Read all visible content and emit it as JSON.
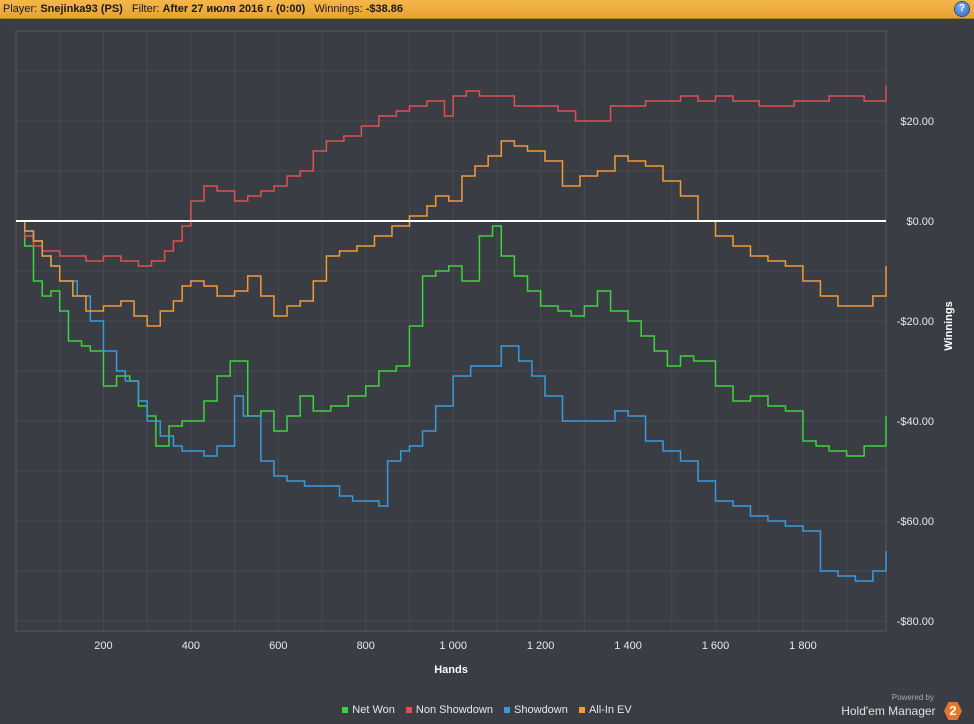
{
  "header": {
    "player_label": "Player:",
    "player_value": "Snejinka93 (PS)",
    "filter_label": "Filter:",
    "filter_value": "After 27 июля 2016 г. (0:00)",
    "winnings_label": "Winnings:",
    "winnings_value": "-$38.86",
    "help_icon": "question-mark-icon",
    "help_text": "?"
  },
  "chart_data": {
    "type": "line",
    "xlabel": "Hands",
    "ylabel": "Winnings",
    "xlim": [
      0,
      1990
    ],
    "ylim": [
      -82,
      38
    ],
    "x_ticks": [
      {
        "value": 200,
        "label": "200"
      },
      {
        "value": 400,
        "label": "400"
      },
      {
        "value": 600,
        "label": "600"
      },
      {
        "value": 800,
        "label": "800"
      },
      {
        "value": 1000,
        "label": "1 000"
      },
      {
        "value": 1200,
        "label": "1 200"
      },
      {
        "value": 1400,
        "label": "1 400"
      },
      {
        "value": 1600,
        "label": "1 600"
      },
      {
        "value": 1800,
        "label": "1 800"
      }
    ],
    "y_ticks": [
      {
        "value": 20,
        "label": "$20.00"
      },
      {
        "value": 0,
        "label": "$0.00"
      },
      {
        "value": -20,
        "label": "-$20.00"
      },
      {
        "value": -40,
        "label": "-$40.00"
      },
      {
        "value": -60,
        "label": "-$60.00"
      },
      {
        "value": -80,
        "label": "-$80.00"
      }
    ],
    "grid": true,
    "zero_line": true,
    "legend_position": "bottom",
    "series": [
      {
        "name": "Net Won",
        "color": "#3fd23f",
        "x": [
          0,
          20,
          40,
          60,
          80,
          100,
          120,
          150,
          170,
          200,
          230,
          260,
          280,
          300,
          320,
          350,
          380,
          400,
          430,
          460,
          490,
          530,
          560,
          590,
          620,
          650,
          680,
          720,
          760,
          800,
          830,
          870,
          900,
          930,
          960,
          990,
          1020,
          1060,
          1090,
          1110,
          1140,
          1170,
          1200,
          1240,
          1270,
          1300,
          1330,
          1360,
          1400,
          1430,
          1460,
          1490,
          1520,
          1550,
          1600,
          1640,
          1680,
          1720,
          1760,
          1800,
          1830,
          1860,
          1900,
          1940,
          1990
        ],
        "y": [
          0,
          -5,
          -12,
          -15,
          -14,
          -18,
          -24,
          -25,
          -26,
          -33,
          -31,
          -32,
          -37,
          -39,
          -45,
          -41,
          -40,
          -40,
          -36,
          -31,
          -28,
          -39,
          -38,
          -42,
          -39,
          -35,
          -38,
          -37,
          -35,
          -33,
          -30,
          -29,
          -21,
          -11,
          -10,
          -9,
          -12,
          -3,
          -1,
          -7,
          -11,
          -14,
          -17,
          -18,
          -19,
          -17,
          -14,
          -18,
          -20,
          -23,
          -26,
          -29,
          -27,
          -28,
          -33,
          -36,
          -35,
          -37,
          -38,
          -44,
          -45,
          -46,
          -47,
          -45,
          -39
        ]
      },
      {
        "name": "Non Showdown",
        "color": "#e05050",
        "x": [
          0,
          20,
          40,
          60,
          80,
          100,
          130,
          160,
          200,
          240,
          260,
          280,
          310,
          340,
          360,
          380,
          400,
          430,
          460,
          500,
          530,
          560,
          590,
          620,
          650,
          680,
          710,
          750,
          790,
          830,
          870,
          900,
          940,
          980,
          1000,
          1030,
          1060,
          1100,
          1140,
          1200,
          1240,
          1280,
          1320,
          1360,
          1400,
          1440,
          1480,
          1520,
          1560,
          1600,
          1640,
          1700,
          1740,
          1780,
          1820,
          1860,
          1900,
          1940,
          1960,
          1990
        ],
        "y": [
          0,
          -3,
          -5,
          -6,
          -6,
          -7,
          -7,
          -8,
          -7,
          -8,
          -8,
          -9,
          -8,
          -6,
          -4,
          -1,
          4,
          7,
          6,
          4,
          5,
          6,
          7,
          9,
          10,
          14,
          16,
          17,
          19,
          21,
          22,
          23,
          24,
          21,
          25,
          26,
          25,
          25,
          23,
          23,
          22,
          20,
          20,
          23,
          23,
          24,
          24,
          25,
          24,
          25,
          24,
          23,
          23,
          24,
          24,
          25,
          25,
          24,
          24,
          27
        ]
      },
      {
        "name": "Showdown",
        "color": "#3a9ad9",
        "x": [
          0,
          20,
          40,
          60,
          80,
          100,
          140,
          170,
          200,
          230,
          250,
          280,
          300,
          330,
          360,
          380,
          400,
          430,
          460,
          500,
          520,
          560,
          590,
          620,
          660,
          700,
          740,
          770,
          800,
          830,
          850,
          880,
          900,
          930,
          960,
          1000,
          1040,
          1080,
          1110,
          1150,
          1180,
          1210,
          1250,
          1290,
          1330,
          1370,
          1400,
          1440,
          1480,
          1520,
          1560,
          1600,
          1640,
          1680,
          1720,
          1760,
          1800,
          1840,
          1880,
          1920,
          1960,
          1990
        ],
        "y": [
          0,
          -2,
          -4,
          -7,
          -9,
          -12,
          -15,
          -20,
          -26,
          -30,
          -32,
          -36,
          -40,
          -43,
          -45,
          -46,
          -46,
          -47,
          -45,
          -35,
          -39,
          -48,
          -51,
          -52,
          -53,
          -53,
          -55,
          -56,
          -56,
          -57,
          -48,
          -46,
          -45,
          -42,
          -37,
          -31,
          -29,
          -29,
          -25,
          -28,
          -31,
          -35,
          -40,
          -40,
          -40,
          -38,
          -39,
          -44,
          -46,
          -48,
          -52,
          -56,
          -57,
          -59,
          -60,
          -61,
          -62,
          -70,
          -71,
          -72,
          -70,
          -66
        ]
      },
      {
        "name": "All-In EV",
        "color": "#f29a38",
        "x": [
          0,
          20,
          40,
          60,
          80,
          100,
          130,
          160,
          200,
          240,
          270,
          300,
          330,
          360,
          380,
          400,
          430,
          460,
          500,
          530,
          560,
          590,
          620,
          650,
          680,
          710,
          740,
          780,
          820,
          860,
          900,
          940,
          960,
          990,
          1020,
          1050,
          1080,
          1110,
          1140,
          1170,
          1210,
          1250,
          1290,
          1330,
          1370,
          1400,
          1440,
          1480,
          1520,
          1560,
          1600,
          1640,
          1680,
          1720,
          1760,
          1800,
          1840,
          1880,
          1920,
          1960,
          1990
        ],
        "y": [
          0,
          -2,
          -4,
          -7,
          -9,
          -12,
          -15,
          -18,
          -17,
          -16,
          -19,
          -21,
          -18,
          -16,
          -13,
          -12,
          -13,
          -15,
          -14,
          -11,
          -15,
          -19,
          -17,
          -16,
          -12,
          -7,
          -6,
          -5,
          -3,
          -1,
          1,
          3,
          5,
          4,
          9,
          11,
          13,
          16,
          15,
          14,
          12,
          7,
          9,
          10,
          13,
          12,
          11,
          8,
          5,
          0,
          -3,
          -5,
          -7,
          -8,
          -9,
          -12,
          -15,
          -17,
          -17,
          -15,
          -9
        ]
      }
    ]
  },
  "legend": {
    "items": [
      {
        "label": "Net Won",
        "color": "#3fd23f"
      },
      {
        "label": "Non Showdown",
        "color": "#e05050"
      },
      {
        "label": "Showdown",
        "color": "#3a9ad9"
      },
      {
        "label": "All-In EV",
        "color": "#f29a38"
      }
    ]
  },
  "branding": {
    "powered_by": "Powered by",
    "product": "Hold'em Manager",
    "logo_text": "2",
    "logo_icon": "hm2-logo-icon"
  }
}
